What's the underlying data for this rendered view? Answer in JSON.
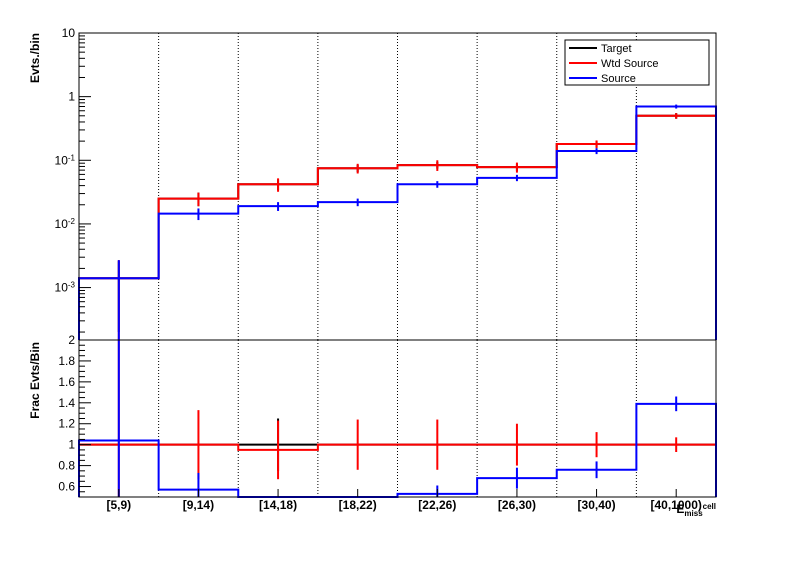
{
  "chart_data": {
    "type": "histogram",
    "categories": [
      "[5,9)",
      "[9,14)",
      "[14,18)",
      "[18,22)",
      "[22,26)",
      "[26,30)",
      "[30,40)",
      "[40,1000)"
    ],
    "xlabel": "E_{miss}^{cell}",
    "grid": "vertical-dotted",
    "legend_position": "top-right",
    "top_panel": {
      "ylabel": "Evts./bin",
      "yscale": "log",
      "ylim": [
        0.00015,
        10
      ],
      "ytick_labels": [
        "10^{-3}",
        "10^{-2}",
        "10^{-1}",
        "1",
        "10"
      ],
      "series": [
        {
          "name": "Target",
          "color": "#000000",
          "values": [
            0.0014,
            0.025,
            0.042,
            0.075,
            0.084,
            0.078,
            0.18,
            0.5
          ],
          "err_lo": [
            0.0012,
            0.006,
            0.008,
            0.01,
            0.01,
            0.01,
            0.02,
            0.05
          ],
          "err_hi": [
            0.0012,
            0.006,
            0.008,
            0.01,
            0.01,
            0.01,
            0.02,
            0.05
          ]
        },
        {
          "name": "Wtd Source",
          "color": "#ff0000",
          "values": [
            0.0014,
            0.025,
            0.042,
            0.075,
            0.084,
            0.078,
            0.18,
            0.5
          ],
          "err_lo": [
            0.00125,
            0.006,
            0.01,
            0.013,
            0.016,
            0.014,
            0.025,
            0.05
          ],
          "err_hi": [
            0.0013,
            0.006,
            0.01,
            0.013,
            0.016,
            0.014,
            0.025,
            0.05
          ]
        },
        {
          "name": "Source",
          "color": "#0000ff",
          "values": [
            0.0014,
            0.0145,
            0.019,
            0.022,
            0.042,
            0.053,
            0.14,
            0.7
          ],
          "err_lo": [
            0.00135,
            0.003,
            0.003,
            0.003,
            0.005,
            0.006,
            0.015,
            0.05
          ],
          "err_hi": [
            0.0013,
            0.003,
            0.003,
            0.003,
            0.005,
            0.006,
            0.015,
            0.05
          ]
        }
      ]
    },
    "bottom_panel": {
      "ylabel": "Frac Evts/Bin",
      "ylim": [
        0.5,
        2.0
      ],
      "yticks": [
        0.6,
        0.8,
        1,
        1.2,
        1.4,
        1.6,
        1.8,
        2
      ],
      "ytick_labels": [
        "0.6",
        "0.8",
        "1",
        "1.2",
        "1.4",
        "1.6",
        "1.8",
        "2"
      ],
      "series": [
        {
          "name": "Target",
          "color": "#000000",
          "values": [
            1.0,
            1.0,
            1.0,
            1.0,
            1.0,
            1.0,
            1.0,
            1.0
          ],
          "err": [
            0,
            0,
            0.25,
            0,
            0,
            0,
            0,
            0
          ]
        },
        {
          "name": "Wtd Source",
          "color": "#ff0000",
          "values": [
            1.0,
            1.0,
            0.95,
            1.0,
            1.0,
            1.0,
            1.0,
            1.0
          ],
          "err": [
            1.0,
            0.33,
            0.28,
            0.24,
            0.24,
            0.2,
            0.12,
            0.07
          ]
        },
        {
          "name": "Source",
          "color": "#0000ff",
          "values": [
            1.04,
            0.57,
            0.5,
            0.5,
            0.53,
            0.68,
            0.76,
            1.39
          ],
          "err": [
            1.0,
            0.16,
            0.0,
            0.0,
            0.08,
            0.1,
            0.08,
            0.07
          ]
        }
      ]
    }
  }
}
